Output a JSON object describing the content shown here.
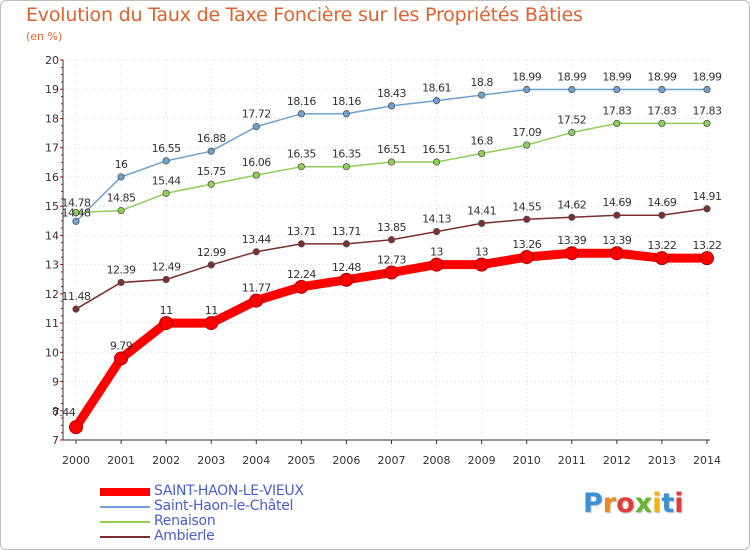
{
  "chart_data": {
    "type": "line",
    "title": "Evolution du Taux de Taxe Foncière sur les Propriétés Bâties",
    "ylabel": "(en %)",
    "xlabel": "",
    "categories": [
      "2000",
      "2001",
      "2002",
      "2003",
      "2004",
      "2005",
      "2006",
      "2007",
      "2008",
      "2009",
      "2010",
      "2011",
      "2012",
      "2013",
      "2014"
    ],
    "ylim": [
      7,
      20
    ],
    "yticks": [
      "7",
      "8",
      "9",
      "10",
      "11",
      "12",
      "13",
      "14",
      "15",
      "16",
      "17",
      "18",
      "19",
      "20"
    ],
    "grid": true,
    "series": [
      {
        "name": "SAINT-HAON-LE-VIEUX",
        "color": "#ff0000",
        "values": [
          7.44,
          9.79,
          11,
          11,
          11.77,
          12.24,
          12.48,
          12.73,
          13,
          13,
          13.26,
          13.39,
          13.39,
          13.22,
          13.22
        ],
        "labels": [
          "7.44",
          "9.79",
          "11",
          "11",
          "11.77",
          "12.24",
          "12.48",
          "12.73",
          "13",
          "13",
          "13.26",
          "13.39",
          "13.39",
          "13.22",
          "13.22"
        ]
      },
      {
        "name": "Saint-Haon-le-Châtel",
        "color": "#6fa1d2",
        "values": [
          14.48,
          16,
          16.55,
          16.88,
          17.72,
          18.16,
          18.16,
          18.43,
          18.61,
          18.8,
          18.99,
          18.99,
          18.99,
          18.99,
          18.99
        ],
        "labels": [
          "14.48",
          "16",
          "16.55",
          "16.88",
          "17.72",
          "18.16",
          "18.16",
          "18.43",
          "18.61",
          "18.8",
          "18.99",
          "18.99",
          "18.99",
          "18.99",
          "18.99"
        ]
      },
      {
        "name": "Renaison",
        "color": "#8fcf56",
        "values": [
          14.78,
          14.85,
          15.44,
          15.75,
          16.06,
          16.35,
          16.35,
          16.51,
          16.51,
          16.8,
          17.09,
          17.52,
          17.83,
          17.83,
          17.83
        ],
        "labels": [
          "14.78",
          "14.85",
          "15.44",
          "15.75",
          "16.06",
          "16.35",
          "16.35",
          "16.51",
          "16.51",
          "16.8",
          "17.09",
          "17.52",
          "17.83",
          "17.83",
          "17.83"
        ]
      },
      {
        "name": "Ambierle",
        "color": "#7b2f2f",
        "values": [
          11.48,
          12.39,
          12.49,
          12.99,
          13.44,
          13.71,
          13.71,
          13.85,
          14.13,
          14.41,
          14.55,
          14.62,
          14.69,
          14.69,
          14.91
        ],
        "labels": [
          "11.48",
          "12.39",
          "12.49",
          "12.99",
          "13.44",
          "13.71",
          "13.71",
          "13.85",
          "14.13",
          "14.41",
          "14.55",
          "14.62",
          "14.69",
          "14.69",
          "14.91"
        ]
      }
    ]
  },
  "legend": [
    {
      "label": "SAINT-HAON-LE-VIEUX",
      "color": "#ff0000"
    },
    {
      "label": "Saint-Haon-le-Châtel",
      "color": "#6fa1d2"
    },
    {
      "label": "Renaison",
      "color": "#8fcf56"
    },
    {
      "label": "Ambierle",
      "color": "#7b2f2f"
    }
  ],
  "logo": {
    "letters": [
      "P",
      "r",
      "o",
      "x",
      "i",
      "t",
      "i"
    ],
    "colors": [
      "#3d8fd6",
      "#f08a1c",
      "#e23b3b",
      "#6ab43a",
      "#f0b21c",
      "#3d8fd6",
      "#e23b3b"
    ]
  }
}
